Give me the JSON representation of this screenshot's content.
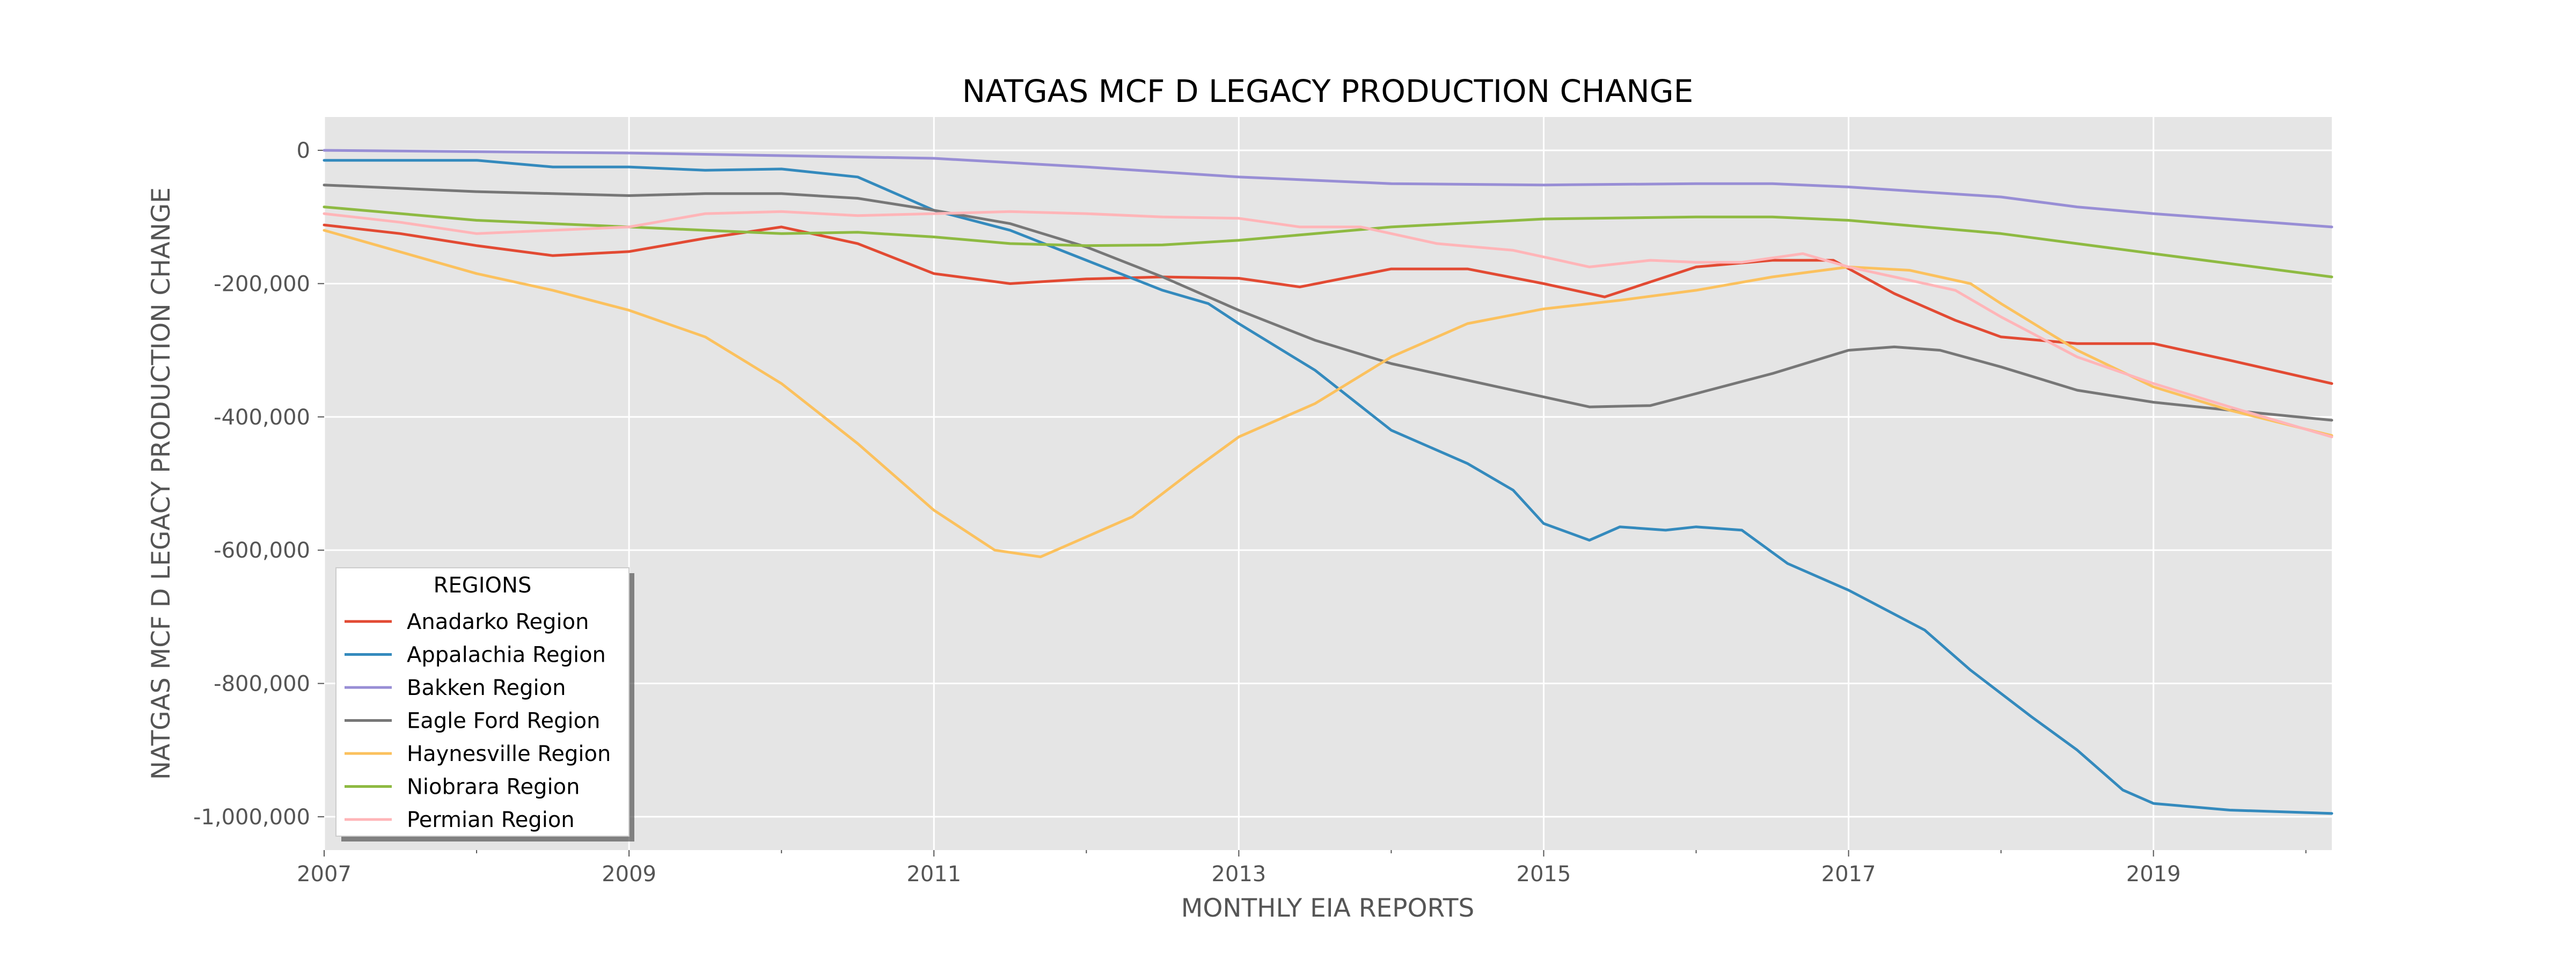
{
  "chart_data": {
    "type": "line",
    "title": "NATGAS MCF D LEGACY PRODUCTION CHANGE",
    "xlabel": "MONTHLY EIA REPORTS",
    "ylabel": "NATGAS MCF D LEGACY PRODUCTION CHANGE",
    "xlim": [
      2007.0,
      2020.17
    ],
    "ylim": [
      -1050000,
      50000
    ],
    "x_ticks": [
      2007,
      2009,
      2011,
      2013,
      2015,
      2017,
      2019
    ],
    "x_tick_labels": [
      "2007",
      "2009",
      "2011",
      "2013",
      "2015",
      "2017",
      "2019"
    ],
    "y_ticks": [
      0,
      -200000,
      -400000,
      -600000,
      -800000,
      -1000000
    ],
    "y_tick_labels": [
      "0",
      "-200,000",
      "-400,000",
      "-600,000",
      "-800,000",
      "-1,000,000"
    ],
    "grid": true,
    "legend": {
      "title": "REGIONS",
      "placement": "lower-left"
    },
    "series": [
      {
        "name": "Anadarko Region",
        "color": "#E24A33",
        "points": [
          [
            2007,
            -112000
          ],
          [
            2007.5,
            -125000
          ],
          [
            2008,
            -143000
          ],
          [
            2008.5,
            -158000
          ],
          [
            2009,
            -152000
          ],
          [
            2009.5,
            -132000
          ],
          [
            2010,
            -115000
          ],
          [
            2010.5,
            -140000
          ],
          [
            2011,
            -185000
          ],
          [
            2011.5,
            -200000
          ],
          [
            2012,
            -193000
          ],
          [
            2012.5,
            -190000
          ],
          [
            2013,
            -192000
          ],
          [
            2013.4,
            -205000
          ],
          [
            2014,
            -178000
          ],
          [
            2014.5,
            -178000
          ],
          [
            2015,
            -200000
          ],
          [
            2015.4,
            -220000
          ],
          [
            2016,
            -175000
          ],
          [
            2016.5,
            -165000
          ],
          [
            2016.9,
            -165000
          ],
          [
            2017.3,
            -215000
          ],
          [
            2017.7,
            -255000
          ],
          [
            2018,
            -280000
          ],
          [
            2018.5,
            -290000
          ],
          [
            2019,
            -290000
          ],
          [
            2019.5,
            -315000
          ],
          [
            2020.17,
            -350000
          ]
        ]
      },
      {
        "name": "Appalachia Region",
        "color": "#348ABD",
        "points": [
          [
            2007,
            -15000
          ],
          [
            2007.5,
            -15000
          ],
          [
            2008,
            -15000
          ],
          [
            2008.5,
            -25000
          ],
          [
            2009,
            -25000
          ],
          [
            2009.5,
            -30000
          ],
          [
            2010,
            -28000
          ],
          [
            2010.5,
            -40000
          ],
          [
            2010.8,
            -70000
          ],
          [
            2011,
            -90000
          ],
          [
            2011.5,
            -120000
          ],
          [
            2012,
            -165000
          ],
          [
            2012.5,
            -210000
          ],
          [
            2012.8,
            -230000
          ],
          [
            2013,
            -260000
          ],
          [
            2013.5,
            -330000
          ],
          [
            2014,
            -420000
          ],
          [
            2014.5,
            -470000
          ],
          [
            2014.8,
            -510000
          ],
          [
            2015,
            -560000
          ],
          [
            2015.3,
            -585000
          ],
          [
            2015.5,
            -565000
          ],
          [
            2015.8,
            -570000
          ],
          [
            2016,
            -565000
          ],
          [
            2016.3,
            -570000
          ],
          [
            2016.6,
            -620000
          ],
          [
            2017,
            -660000
          ],
          [
            2017.5,
            -720000
          ],
          [
            2017.8,
            -780000
          ],
          [
            2018.2,
            -850000
          ],
          [
            2018.5,
            -900000
          ],
          [
            2018.8,
            -960000
          ],
          [
            2019,
            -980000
          ],
          [
            2019.5,
            -990000
          ],
          [
            2020.17,
            -995000
          ]
        ]
      },
      {
        "name": "Bakken Region",
        "color": "#988ED5",
        "points": [
          [
            2007,
            0
          ],
          [
            2008,
            -2000
          ],
          [
            2009,
            -4000
          ],
          [
            2010,
            -8000
          ],
          [
            2011,
            -12000
          ],
          [
            2012,
            -25000
          ],
          [
            2013,
            -40000
          ],
          [
            2014,
            -50000
          ],
          [
            2015,
            -52000
          ],
          [
            2016,
            -50000
          ],
          [
            2016.5,
            -50000
          ],
          [
            2017,
            -55000
          ],
          [
            2018,
            -70000
          ],
          [
            2018.5,
            -85000
          ],
          [
            2019,
            -95000
          ],
          [
            2020.17,
            -115000
          ]
        ]
      },
      {
        "name": "Eagle Ford Region",
        "color": "#777777",
        "points": [
          [
            2007,
            -52000
          ],
          [
            2008,
            -62000
          ],
          [
            2009,
            -68000
          ],
          [
            2009.5,
            -65000
          ],
          [
            2010,
            -65000
          ],
          [
            2010.5,
            -72000
          ],
          [
            2011,
            -90000
          ],
          [
            2011.5,
            -110000
          ],
          [
            2012,
            -145000
          ],
          [
            2012.5,
            -190000
          ],
          [
            2013,
            -240000
          ],
          [
            2013.5,
            -285000
          ],
          [
            2014,
            -320000
          ],
          [
            2014.5,
            -345000
          ],
          [
            2015,
            -370000
          ],
          [
            2015.3,
            -385000
          ],
          [
            2015.7,
            -383000
          ],
          [
            2016,
            -365000
          ],
          [
            2016.5,
            -335000
          ],
          [
            2017,
            -300000
          ],
          [
            2017.3,
            -295000
          ],
          [
            2017.6,
            -300000
          ],
          [
            2018,
            -325000
          ],
          [
            2018.5,
            -360000
          ],
          [
            2019,
            -378000
          ],
          [
            2019.5,
            -390000
          ],
          [
            2020.17,
            -405000
          ]
        ]
      },
      {
        "name": "Haynesville Region",
        "color": "#FBC15E",
        "points": [
          [
            2007,
            -120000
          ],
          [
            2008,
            -185000
          ],
          [
            2008.5,
            -210000
          ],
          [
            2009,
            -240000
          ],
          [
            2009.5,
            -280000
          ],
          [
            2010,
            -350000
          ],
          [
            2010.5,
            -440000
          ],
          [
            2011,
            -540000
          ],
          [
            2011.4,
            -600000
          ],
          [
            2011.7,
            -610000
          ],
          [
            2011.9,
            -590000
          ],
          [
            2012.3,
            -550000
          ],
          [
            2012.7,
            -480000
          ],
          [
            2013,
            -430000
          ],
          [
            2013.5,
            -380000
          ],
          [
            2014,
            -310000
          ],
          [
            2014.5,
            -260000
          ],
          [
            2015,
            -238000
          ],
          [
            2015.5,
            -225000
          ],
          [
            2016,
            -210000
          ],
          [
            2016.5,
            -190000
          ],
          [
            2017,
            -175000
          ],
          [
            2017.4,
            -180000
          ],
          [
            2017.8,
            -200000
          ],
          [
            2018,
            -230000
          ],
          [
            2018.5,
            -300000
          ],
          [
            2019,
            -355000
          ],
          [
            2019.5,
            -390000
          ],
          [
            2020.17,
            -428000
          ]
        ]
      },
      {
        "name": "Niobrara Region",
        "color": "#8EBA42",
        "points": [
          [
            2007,
            -85000
          ],
          [
            2008,
            -105000
          ],
          [
            2009,
            -115000
          ],
          [
            2009.5,
            -120000
          ],
          [
            2010,
            -125000
          ],
          [
            2010.5,
            -123000
          ],
          [
            2011,
            -130000
          ],
          [
            2011.5,
            -140000
          ],
          [
            2012,
            -143000
          ],
          [
            2012.5,
            -142000
          ],
          [
            2013,
            -135000
          ],
          [
            2014,
            -115000
          ],
          [
            2015,
            -103000
          ],
          [
            2016,
            -100000
          ],
          [
            2016.5,
            -100000
          ],
          [
            2017,
            -105000
          ],
          [
            2018,
            -125000
          ],
          [
            2019,
            -155000
          ],
          [
            2020.17,
            -190000
          ]
        ]
      },
      {
        "name": "Permian Region",
        "color": "#FFB5B8",
        "points": [
          [
            2007,
            -95000
          ],
          [
            2007.5,
            -108000
          ],
          [
            2008,
            -125000
          ],
          [
            2008.5,
            -120000
          ],
          [
            2009,
            -115000
          ],
          [
            2009.5,
            -95000
          ],
          [
            2010,
            -92000
          ],
          [
            2010.5,
            -98000
          ],
          [
            2011,
            -95000
          ],
          [
            2011.5,
            -92000
          ],
          [
            2012,
            -95000
          ],
          [
            2012.5,
            -100000
          ],
          [
            2013,
            -102000
          ],
          [
            2013.4,
            -115000
          ],
          [
            2013.8,
            -115000
          ],
          [
            2014.3,
            -140000
          ],
          [
            2014.8,
            -150000
          ],
          [
            2015.3,
            -175000
          ],
          [
            2015.7,
            -165000
          ],
          [
            2016,
            -168000
          ],
          [
            2016.3,
            -168000
          ],
          [
            2016.7,
            -155000
          ],
          [
            2017,
            -175000
          ],
          [
            2017.3,
            -190000
          ],
          [
            2017.7,
            -210000
          ],
          [
            2018,
            -250000
          ],
          [
            2018.5,
            -310000
          ],
          [
            2019,
            -350000
          ],
          [
            2019.5,
            -385000
          ],
          [
            2020.17,
            -430000
          ]
        ]
      }
    ]
  }
}
